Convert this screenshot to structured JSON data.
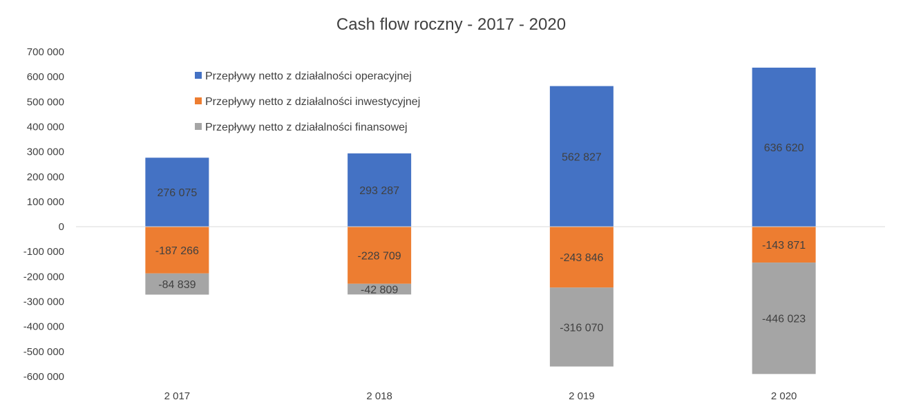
{
  "chart_data": {
    "type": "bar",
    "stacked": true,
    "title": "Cash flow roczny - 2017 - 2020",
    "xlabel": "",
    "ylabel": "",
    "categories": [
      "2 017",
      "2 018",
      "2 019",
      "2 020"
    ],
    "ylim": [
      -600000,
      700000
    ],
    "yticks": [
      700000,
      600000,
      500000,
      400000,
      300000,
      200000,
      100000,
      0,
      -100000,
      -200000,
      -300000,
      -400000,
      -500000,
      -600000
    ],
    "ytick_labels": [
      "700 000",
      "600 000",
      "500 000",
      "400 000",
      "300 000",
      "200 000",
      "100 000",
      "0",
      "-100 000",
      "-200 000",
      "-300 000",
      "-400 000",
      "-500 000",
      "-600 000"
    ],
    "grid": false,
    "legend_position": "top-left (inside plot)",
    "series": [
      {
        "name": "Przepływy netto z działalności operacyjnej",
        "color": "#4472C4",
        "values": [
          276075,
          293287,
          562827,
          636620
        ],
        "labels": [
          "276 075",
          "293 287",
          "562 827",
          "636 620"
        ]
      },
      {
        "name": "Przepływy netto z działalności inwestycyjnej",
        "color": "#ED7D31",
        "values": [
          -187266,
          -228709,
          -243846,
          -143871
        ],
        "labels": [
          "-187 266",
          "-228 709",
          "-243 846",
          "-143 871"
        ]
      },
      {
        "name": "Przepływy netto z działalności finansowej",
        "color": "#A5A5A5",
        "values": [
          -84839,
          -42809,
          -316070,
          -446023
        ],
        "labels": [
          "-84 839",
          "-42 809",
          "-316 070",
          "-446 023"
        ]
      }
    ]
  }
}
